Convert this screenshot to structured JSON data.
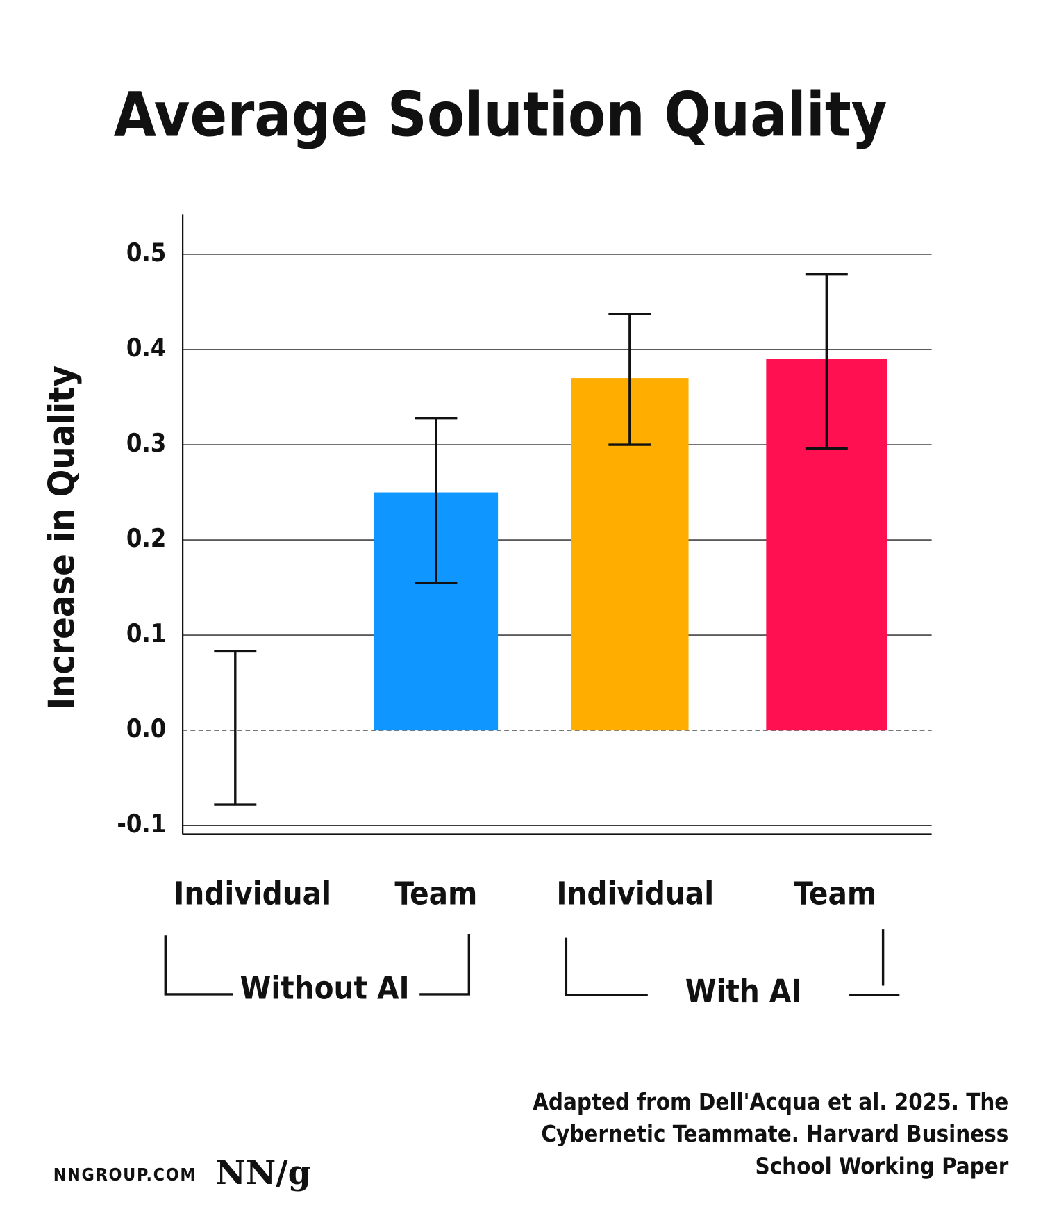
{
  "chart_data": {
    "type": "bar",
    "title": "Average Solution Quality",
    "y_label": "Increase in Quality",
    "categories": [
      "Individual",
      "Team",
      "Individual",
      "Team"
    ],
    "groups": [
      "Without AI",
      "With AI"
    ],
    "values": [
      0.0,
      0.25,
      0.37,
      0.39
    ],
    "ci_low": [
      -0.078,
      0.155,
      0.3,
      0.296
    ],
    "ci_high": [
      0.083,
      0.328,
      0.437,
      0.479
    ],
    "colors": [
      "#1097ff",
      "#1097ff",
      "#ffae00",
      "#ff1050"
    ],
    "ylim": [
      -0.109,
      0.542
    ],
    "yticks": [
      {
        "value": -0.1,
        "label": "-0.1"
      },
      {
        "value": 0,
        "label": "0.0"
      },
      0.1,
      0.2,
      0.3,
      0.4,
      0.5
    ],
    "grid": true,
    "source": [
      "Adapted from Dell'Acqua et al.  2025. The",
      "Cybernetic Teammate. Harvard Business",
      "School Working Paper"
    ],
    "footer": {
      "site": "NNGROUP.COM",
      "logo": "NN/g"
    }
  }
}
